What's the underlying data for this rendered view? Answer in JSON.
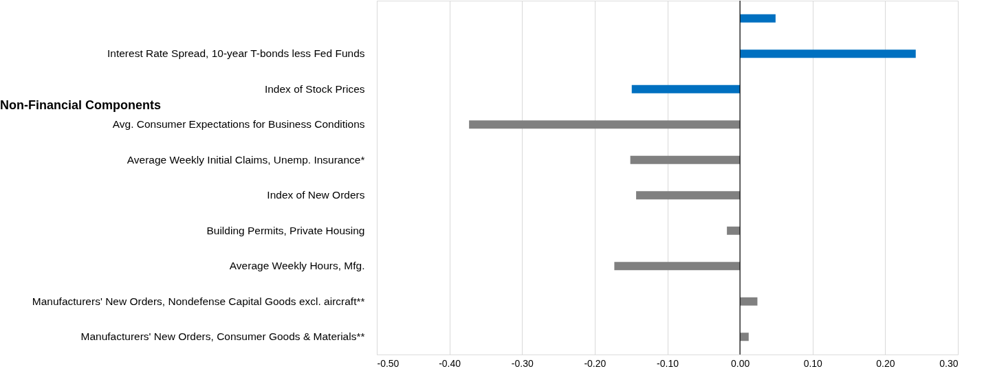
{
  "chart_data": {
    "type": "bar",
    "orientation": "horizontal",
    "categories": [
      null,
      "Interest Rate Spread, 10-year T-bonds less Fed Funds",
      "Index of Stock Prices",
      "Avg. Consumer Expectations for Business Conditions",
      "Average Weekly Initial Claims, Unemp. Insurance*",
      "Index of New Orders",
      "Building Permits, Private Housing",
      "Average Weekly Hours, Mfg.",
      "Manufacturers' New Orders, Nondefense Capital Goods excl. aircraft**",
      "Manufacturers' New Orders, Consumer Goods & Materials**"
    ],
    "values": [
      0.049,
      0.242,
      -0.149,
      -0.373,
      -0.151,
      -0.143,
      -0.018,
      -0.173,
      0.024,
      0.012
    ],
    "colors": [
      "#0070c0",
      "#0070c0",
      "#0070c0",
      "#808080",
      "#808080",
      "#808080",
      "#808080",
      "#808080",
      "#808080",
      "#808080"
    ],
    "xlim": [
      -0.5,
      0.3
    ],
    "xticks": [
      {
        "value": -0.5,
        "label": "-0.50"
      },
      {
        "value": -0.4,
        "label": "-0.40"
      },
      {
        "value": -0.3,
        "label": "-0.30"
      },
      {
        "value": -0.2,
        "label": "-0.20"
      },
      {
        "value": -0.1,
        "label": "-0.10"
      },
      {
        "value": 0,
        "label": "0.00"
      },
      {
        "value": 0.1,
        "label": "0.10"
      },
      {
        "value": 0.2,
        "label": "0.20"
      },
      {
        "value": 0.3,
        "label": "0.30"
      }
    ],
    "annotations": [
      "Non-Financial Components"
    ],
    "grid": "x"
  }
}
